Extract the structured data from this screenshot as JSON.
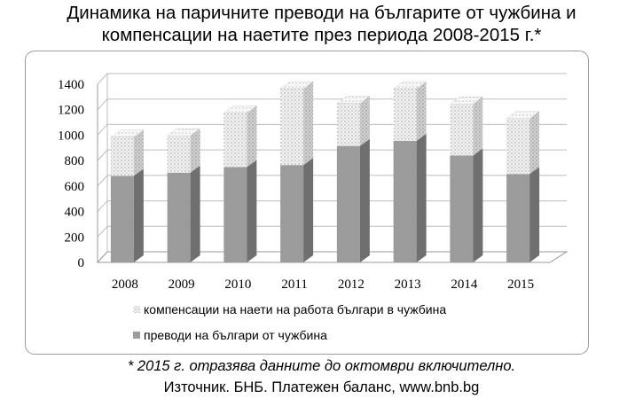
{
  "title": {
    "line1": "Динамика на паричните преводи на българите от чужбина и",
    "line2": "компенсации на наетите през периода 2008-2015 г.*"
  },
  "footnote": "* 2015 г. отразява данните до октомври включително.",
  "source": "Източник. БНБ. Платежен баланс, www.bnb.bg",
  "chart_data": {
    "type": "bar",
    "stacked": true,
    "categories": [
      "2008",
      "2009",
      "2010",
      "2011",
      "2012",
      "2013",
      "2014",
      "2015"
    ],
    "series": [
      {
        "name": "преводи на българи от чужбина",
        "values": [
          680,
          705,
          750,
          765,
          915,
          955,
          840,
          695
        ],
        "color": "#9b9b9b",
        "pattern": "solid"
      },
      {
        "name": "компенсации на наети на работа българи в чужбина",
        "values": [
          305,
          290,
          425,
          600,
          335,
          410,
          405,
          435
        ],
        "color": "#e6e6e6",
        "pattern": "dotted"
      }
    ],
    "ylim": [
      0,
      1400
    ],
    "yticks": [
      0,
      200,
      400,
      600,
      800,
      1000,
      1200,
      1400
    ],
    "grid": true,
    "legend_position": "bottom",
    "style": "3d"
  }
}
